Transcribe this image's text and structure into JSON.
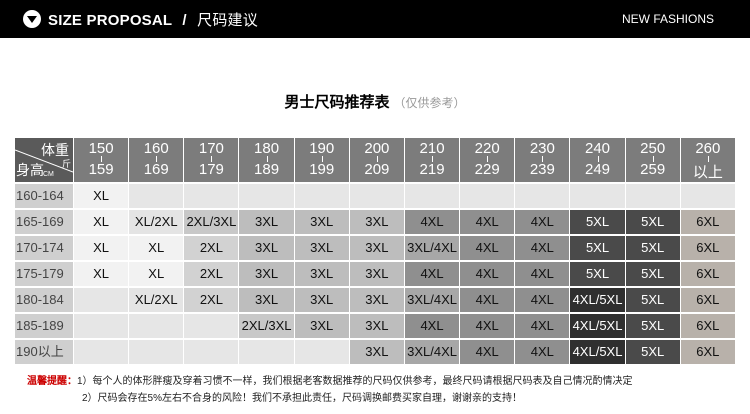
{
  "header": {
    "title": "SIZE PROPOSAL",
    "separator": "/",
    "title_cn": "尺码建议",
    "right_text": "NEW FASHIONS"
  },
  "heading": {
    "main": "男士尺码推荐表",
    "note": "（仅供参考）"
  },
  "table": {
    "corner": {
      "weight": "体重",
      "weight_unit": "斤",
      "height": "身高",
      "height_unit": "CM"
    },
    "columns": [
      [
        "150",
        "159"
      ],
      [
        "160",
        "169"
      ],
      [
        "170",
        "179"
      ],
      [
        "180",
        "189"
      ],
      [
        "190",
        "199"
      ],
      [
        "200",
        "209"
      ],
      [
        "210",
        "219"
      ],
      [
        "220",
        "229"
      ],
      [
        "230",
        "239"
      ],
      [
        "240",
        "249"
      ],
      [
        "250",
        "259"
      ],
      [
        "260",
        "以上"
      ]
    ],
    "rows": [
      {
        "label": "160-164",
        "cells": [
          "XL",
          "",
          "",
          "",
          "",
          "",
          "",
          "",
          "",
          "",
          "",
          ""
        ]
      },
      {
        "label": "165-169",
        "cells": [
          "XL",
          "XL/2XL",
          "2XL/3XL",
          "3XL",
          "3XL",
          "3XL",
          "4XL",
          "4XL",
          "4XL",
          "5XL",
          "5XL",
          "6XL"
        ]
      },
      {
        "label": "170-174",
        "cells": [
          "XL",
          "XL",
          "2XL",
          "3XL",
          "3XL",
          "3XL",
          "3XL/4XL",
          "4XL",
          "4XL",
          "5XL",
          "5XL",
          "6XL"
        ]
      },
      {
        "label": "175-179",
        "cells": [
          "XL",
          "XL",
          "2XL",
          "3XL",
          "3XL",
          "3XL",
          "4XL",
          "4XL",
          "4XL",
          "5XL",
          "5XL",
          "6XL"
        ]
      },
      {
        "label": "180-184",
        "cells": [
          "",
          "XL/2XL",
          "2XL",
          "3XL",
          "3XL",
          "3XL",
          "3XL/4XL",
          "4XL",
          "4XL",
          "4XL/5XL",
          "5XL",
          "6XL"
        ]
      },
      {
        "label": "185-189",
        "cells": [
          "",
          "",
          "",
          "2XL/3XL",
          "3XL",
          "3XL",
          "4XL",
          "4XL",
          "4XL",
          "4XL/5XL",
          "5XL",
          "6XL"
        ]
      },
      {
        "label": "190以上",
        "cells": [
          "",
          "",
          "",
          "",
          "",
          "3XL",
          "3XL/4XL",
          "4XL",
          "4XL",
          "4XL/5XL",
          "5XL",
          "6XL"
        ]
      }
    ],
    "colors": {
      "XL": "#f2f2f2",
      "XL/2XL": "#e4e4e4",
      "2XL": "#d2d2d2",
      "2XL/3XL": "#c8c8c8",
      "3XL": "#bdbdbd",
      "3XL/4XL": "#a7a7a7",
      "4XL": "#8f8f8f",
      "4XL/5XL": "#2f2f2f",
      "5XL": "#4a4a4a",
      "6XL": "#b8b1aa",
      "empty": "#e6e6e6"
    }
  },
  "tips": {
    "label": "温馨提醒：",
    "line1": "1）每个人的体形胖瘦及穿着习惯不一样，我们根据老客数据推荐的尺码仅供参考，最终尺码请根据尺码表及自己情况酌情决定",
    "line2": "2）尺码会存在5%左右不合身的风险！我们不承担此责任，尺码调换邮费买家自理，谢谢亲的支持！"
  }
}
